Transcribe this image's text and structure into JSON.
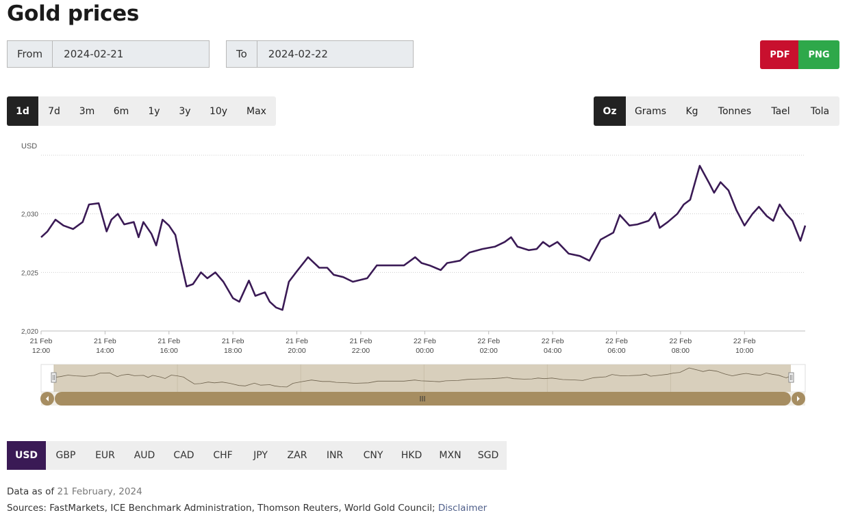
{
  "page": {
    "title": "Gold prices"
  },
  "date_range": {
    "from_label": "From",
    "from_value": "2024-02-21",
    "to_label": "To",
    "to_value": "2024-02-22"
  },
  "export": {
    "pdf_label": "PDF",
    "png_label": "PNG",
    "pdf_color": "#c8102e",
    "png_color": "#2ea84a"
  },
  "periods": [
    "1d",
    "7d",
    "3m",
    "6m",
    "1y",
    "3y",
    "10y",
    "Max"
  ],
  "period_active": "1d",
  "units": [
    "Oz",
    "Grams",
    "Kg",
    "Tonnes",
    "Tael",
    "Tola"
  ],
  "unit_active": "Oz",
  "currencies": [
    "USD",
    "GBP",
    "EUR",
    "AUD",
    "CAD",
    "CHF",
    "JPY",
    "ZAR",
    "INR",
    "CNY",
    "HKD",
    "MXN",
    "SGD"
  ],
  "currency_active": "USD",
  "footer": {
    "data_as_of_label": "Data as of",
    "data_as_of_value": "21 February, 2024",
    "sources_label": "Sources: FastMarkets, ICE Benchmark Administration, Thomson Reuters, World Gold Council;",
    "disclaimer_label": "Disclaimer"
  },
  "chart_data": {
    "type": "line",
    "ylabel": "USD",
    "ylim": [
      2020,
      2035
    ],
    "yticks": [
      "2,020",
      "2,025",
      "2,030"
    ],
    "y_tick_values": [
      2020,
      2025,
      2030
    ],
    "xlim": [
      0,
      23.9
    ],
    "x_ticks": [
      {
        "line1": "21 Feb",
        "line2": "12:00",
        "h": 0
      },
      {
        "line1": "21 Feb",
        "line2": "14:00",
        "h": 2
      },
      {
        "line1": "21 Feb",
        "line2": "16:00",
        "h": 4
      },
      {
        "line1": "21 Feb",
        "line2": "18:00",
        "h": 6
      },
      {
        "line1": "21 Feb",
        "line2": "20:00",
        "h": 8
      },
      {
        "line1": "21 Feb",
        "line2": "22:00",
        "h": 10
      },
      {
        "line1": "22 Feb",
        "line2": "00:00",
        "h": 12
      },
      {
        "line1": "22 Feb",
        "line2": "02:00",
        "h": 14
      },
      {
        "line1": "22 Feb",
        "line2": "04:00",
        "h": 16
      },
      {
        "line1": "22 Feb",
        "line2": "06:00",
        "h": 18
      },
      {
        "line1": "22 Feb",
        "line2": "08:00",
        "h": 20
      },
      {
        "line1": "22 Feb",
        "line2": "10:00",
        "h": 22
      }
    ],
    "grid": true,
    "line_color": "#3a1a55",
    "series": [
      {
        "x": [
          0,
          0.2,
          0.45,
          0.7,
          1.0,
          1.3,
          1.5,
          1.8,
          2.05,
          2.2,
          2.4,
          2.6,
          2.9,
          3.05,
          3.2,
          3.45,
          3.6,
          3.8,
          4.0,
          4.2,
          4.35,
          4.55,
          4.75,
          5.0,
          5.2,
          5.45,
          5.7,
          5.85,
          6.0,
          6.2,
          6.5,
          6.7,
          7.0,
          7.15,
          7.35,
          7.55,
          7.75,
          8.0,
          8.35,
          8.7,
          8.95,
          9.15,
          9.45,
          9.75,
          10.2,
          10.5,
          10.95,
          11.35,
          11.7,
          11.9,
          12.15,
          12.5,
          12.7,
          13.1,
          13.4,
          13.8,
          14.2,
          14.5,
          14.7,
          14.9,
          15.25,
          15.5,
          15.7,
          15.9,
          16.15,
          16.5,
          16.85,
          17.15,
          17.5,
          17.9,
          18.1,
          18.4,
          18.65,
          19.0,
          19.2,
          19.35,
          19.6,
          19.9,
          20.1,
          20.3,
          20.6,
          20.9,
          21.05,
          21.25,
          21.5,
          21.75,
          22.0,
          22.25,
          22.45,
          22.7,
          22.9,
          23.1,
          23.3,
          23.5,
          23.75,
          23.9
        ],
        "y": [
          2028.0,
          2028.5,
          2029.5,
          2029.0,
          2028.7,
          2029.3,
          2030.8,
          2030.9,
          2028.5,
          2029.5,
          2030.0,
          2029.1,
          2029.3,
          2028.0,
          2029.3,
          2028.3,
          2027.3,
          2029.5,
          2029.0,
          2028.2,
          2026.2,
          2023.8,
          2024.0,
          2025.0,
          2024.5,
          2025.0,
          2024.2,
          2023.5,
          2022.8,
          2022.5,
          2024.3,
          2023.0,
          2023.3,
          2022.5,
          2022.0,
          2021.8,
          2024.2,
          2025.1,
          2026.3,
          2025.4,
          2025.4,
          2024.8,
          2024.6,
          2024.2,
          2024.5,
          2025.6,
          2025.6,
          2025.6,
          2026.3,
          2025.8,
          2025.6,
          2025.2,
          2025.8,
          2026.0,
          2026.7,
          2027.0,
          2027.2,
          2027.6,
          2028.0,
          2027.2,
          2026.9,
          2027.0,
          2027.6,
          2027.2,
          2027.6,
          2026.6,
          2026.4,
          2026.0,
          2027.8,
          2028.4,
          2029.9,
          2029.0,
          2029.1,
          2029.4,
          2030.1,
          2028.8,
          2029.3,
          2030.0,
          2030.8,
          2031.2,
          2034.1,
          2032.6,
          2031.8,
          2032.7,
          2032.0,
          2030.3,
          2029.0,
          2030.0,
          2030.6,
          2029.8,
          2029.4,
          2030.8,
          2030.0,
          2029.4,
          2027.7,
          2029.0
        ]
      }
    ]
  }
}
